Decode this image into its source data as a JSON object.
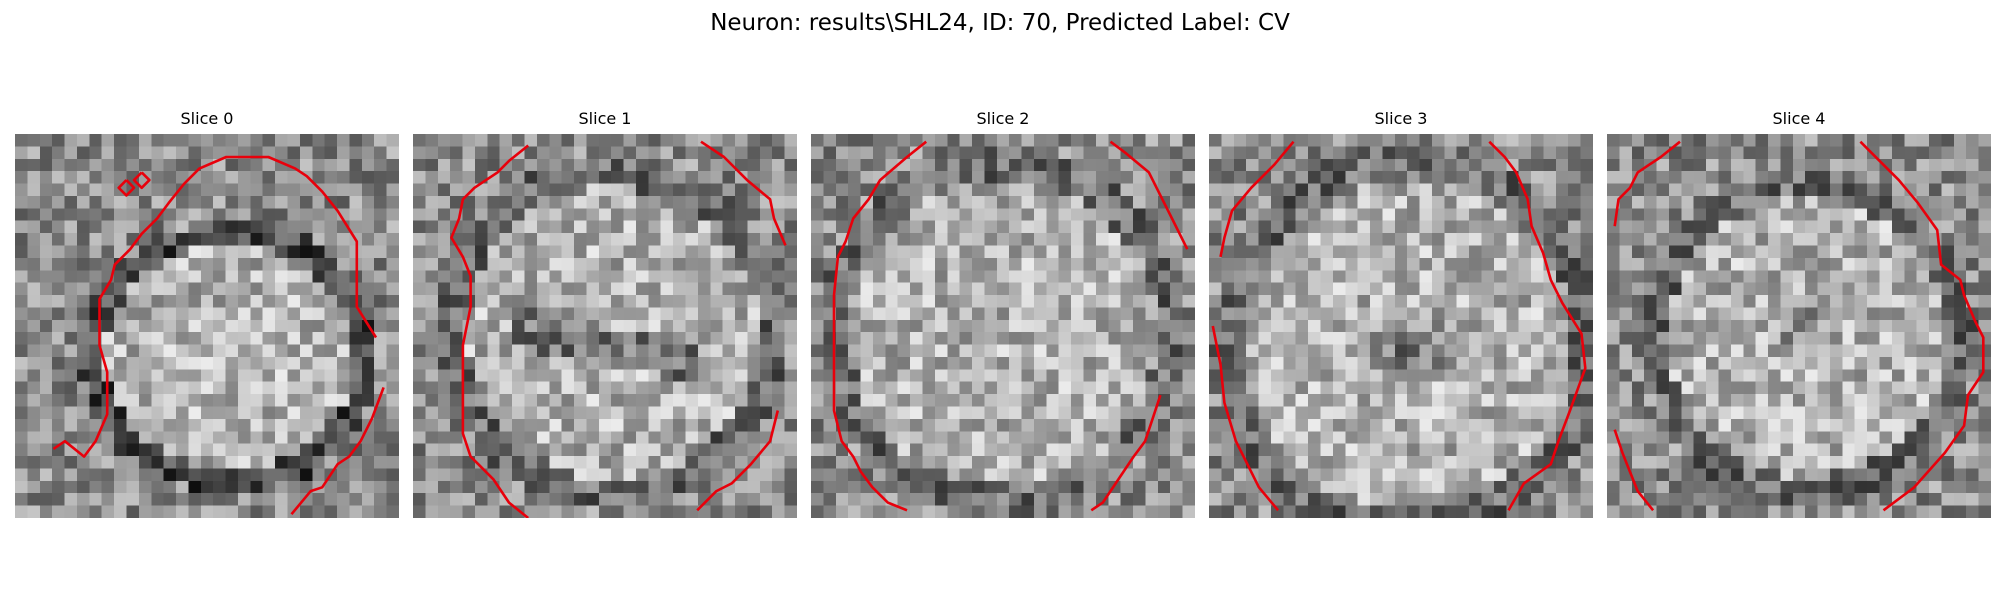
{
  "figure": {
    "title": "Neuron: results\\SHL24, ID: 70, Predicted Label: CV",
    "contour_color": "#e8000b",
    "colormap": "gray"
  },
  "panels": [
    {
      "title": "Slice 0",
      "seed": 11,
      "center": [
        0.56,
        0.58
      ],
      "radius": [
        0.34,
        0.31
      ],
      "ring_dark": true,
      "contours": [
        [
          [
            0.1,
            0.82
          ],
          [
            0.13,
            0.8
          ],
          [
            0.18,
            0.84
          ],
          [
            0.21,
            0.8
          ],
          [
            0.24,
            0.73
          ],
          [
            0.24,
            0.62
          ],
          [
            0.22,
            0.55
          ],
          [
            0.22,
            0.43
          ],
          [
            0.25,
            0.38
          ],
          [
            0.26,
            0.34
          ],
          [
            0.3,
            0.3
          ],
          [
            0.33,
            0.26
          ],
          [
            0.37,
            0.22
          ],
          [
            0.4,
            0.18
          ],
          [
            0.44,
            0.13
          ],
          [
            0.48,
            0.09
          ],
          [
            0.55,
            0.06
          ],
          [
            0.66,
            0.06
          ],
          [
            0.73,
            0.09
          ],
          [
            0.76,
            0.11
          ],
          [
            0.8,
            0.15
          ],
          [
            0.84,
            0.2
          ],
          [
            0.89,
            0.28
          ],
          [
            0.89,
            0.45
          ],
          [
            0.94,
            0.53
          ]
        ],
        [
          [
            0.72,
            0.99
          ],
          [
            0.77,
            0.93
          ],
          [
            0.8,
            0.92
          ],
          [
            0.84,
            0.86
          ],
          [
            0.87,
            0.84
          ],
          [
            0.9,
            0.8
          ],
          [
            0.93,
            0.74
          ],
          [
            0.96,
            0.66
          ]
        ],
        [
          [
            0.33,
            0.1
          ],
          [
            0.31,
            0.12
          ],
          [
            0.33,
            0.14
          ],
          [
            0.35,
            0.12
          ],
          [
            0.33,
            0.1
          ]
        ],
        [
          [
            0.29,
            0.12
          ],
          [
            0.27,
            0.14
          ],
          [
            0.29,
            0.16
          ],
          [
            0.31,
            0.14
          ],
          [
            0.29,
            0.12
          ]
        ]
      ]
    },
    {
      "title": "Slice 1",
      "seed": 23,
      "center": [
        0.52,
        0.52
      ],
      "radius": [
        0.4,
        0.4
      ],
      "ring_dark": false,
      "contours": [
        [
          [
            0.3,
            0.03
          ],
          [
            0.25,
            0.07
          ],
          [
            0.22,
            0.1
          ],
          [
            0.16,
            0.14
          ],
          [
            0.13,
            0.17
          ],
          [
            0.12,
            0.22
          ],
          [
            0.1,
            0.27
          ],
          [
            0.13,
            0.32
          ],
          [
            0.15,
            0.37
          ],
          [
            0.15,
            0.45
          ],
          [
            0.13,
            0.55
          ],
          [
            0.13,
            0.66
          ],
          [
            0.13,
            0.78
          ],
          [
            0.15,
            0.84
          ],
          [
            0.17,
            0.86
          ],
          [
            0.21,
            0.9
          ],
          [
            0.25,
            0.96
          ],
          [
            0.3,
            1.0
          ]
        ],
        [
          [
            0.75,
            0.02
          ],
          [
            0.81,
            0.06
          ],
          [
            0.87,
            0.12
          ],
          [
            0.93,
            0.17
          ],
          [
            0.94,
            0.22
          ],
          [
            0.97,
            0.29
          ]
        ],
        [
          [
            0.74,
            0.98
          ],
          [
            0.79,
            0.93
          ],
          [
            0.83,
            0.91
          ],
          [
            0.88,
            0.86
          ],
          [
            0.93,
            0.8
          ],
          [
            0.95,
            0.72
          ]
        ]
      ]
    },
    {
      "title": "Slice 2",
      "seed": 37,
      "center": [
        0.5,
        0.52
      ],
      "radius": [
        0.42,
        0.42
      ],
      "ring_dark": false,
      "contours": [
        [
          [
            0.3,
            0.02
          ],
          [
            0.25,
            0.06
          ],
          [
            0.18,
            0.12
          ],
          [
            0.15,
            0.17
          ],
          [
            0.11,
            0.22
          ],
          [
            0.09,
            0.28
          ],
          [
            0.07,
            0.32
          ],
          [
            0.06,
            0.42
          ],
          [
            0.06,
            0.56
          ],
          [
            0.06,
            0.66
          ],
          [
            0.06,
            0.72
          ],
          [
            0.08,
            0.8
          ],
          [
            0.11,
            0.84
          ],
          [
            0.13,
            0.88
          ],
          [
            0.16,
            0.92
          ],
          [
            0.2,
            0.96
          ],
          [
            0.25,
            0.98
          ]
        ],
        [
          [
            0.78,
            0.02
          ],
          [
            0.82,
            0.05
          ],
          [
            0.88,
            0.1
          ],
          [
            0.91,
            0.16
          ],
          [
            0.94,
            0.22
          ],
          [
            0.98,
            0.3
          ]
        ],
        [
          [
            0.73,
            0.98
          ],
          [
            0.76,
            0.96
          ],
          [
            0.8,
            0.9
          ],
          [
            0.84,
            0.84
          ],
          [
            0.87,
            0.8
          ],
          [
            0.89,
            0.74
          ],
          [
            0.91,
            0.68
          ]
        ]
      ]
    },
    {
      "title": "Slice 3",
      "seed": 51,
      "center": [
        0.52,
        0.55
      ],
      "radius": [
        0.45,
        0.45
      ],
      "ring_dark": false,
      "contours": [
        [
          [
            0.22,
            0.02
          ],
          [
            0.17,
            0.08
          ],
          [
            0.11,
            0.14
          ],
          [
            0.06,
            0.2
          ],
          [
            0.04,
            0.27
          ],
          [
            0.03,
            0.32
          ]
        ],
        [
          [
            0.73,
            0.02
          ],
          [
            0.77,
            0.06
          ],
          [
            0.8,
            0.1
          ],
          [
            0.83,
            0.17
          ],
          [
            0.84,
            0.24
          ],
          [
            0.87,
            0.31
          ],
          [
            0.89,
            0.38
          ],
          [
            0.92,
            0.44
          ],
          [
            0.97,
            0.52
          ],
          [
            0.98,
            0.61
          ],
          [
            0.94,
            0.72
          ],
          [
            0.91,
            0.8
          ],
          [
            0.89,
            0.86
          ],
          [
            0.82,
            0.91
          ],
          [
            0.78,
            0.98
          ]
        ],
        [
          [
            0.01,
            0.5
          ],
          [
            0.03,
            0.6
          ],
          [
            0.04,
            0.7
          ],
          [
            0.07,
            0.8
          ],
          [
            0.1,
            0.86
          ],
          [
            0.13,
            0.92
          ],
          [
            0.18,
            0.98
          ]
        ]
      ]
    },
    {
      "title": "Slice 4",
      "seed": 67,
      "center": [
        0.52,
        0.53
      ],
      "radius": [
        0.38,
        0.38
      ],
      "ring_dark": false,
      "contours": [
        [
          [
            0.19,
            0.02
          ],
          [
            0.14,
            0.06
          ],
          [
            0.08,
            0.1
          ],
          [
            0.06,
            0.14
          ],
          [
            0.03,
            0.17
          ],
          [
            0.02,
            0.24
          ]
        ],
        [
          [
            0.66,
            0.02
          ],
          [
            0.71,
            0.07
          ],
          [
            0.76,
            0.12
          ],
          [
            0.81,
            0.18
          ],
          [
            0.86,
            0.25
          ],
          [
            0.87,
            0.34
          ],
          [
            0.92,
            0.38
          ],
          [
            0.93,
            0.42
          ],
          [
            0.96,
            0.49
          ],
          [
            0.98,
            0.53
          ],
          [
            0.98,
            0.62
          ],
          [
            0.94,
            0.68
          ],
          [
            0.93,
            0.76
          ],
          [
            0.88,
            0.83
          ],
          [
            0.8,
            0.92
          ],
          [
            0.72,
            0.98
          ]
        ],
        [
          [
            0.02,
            0.77
          ],
          [
            0.04,
            0.83
          ],
          [
            0.06,
            0.88
          ],
          [
            0.08,
            0.93
          ],
          [
            0.12,
            0.98
          ]
        ]
      ]
    }
  ]
}
